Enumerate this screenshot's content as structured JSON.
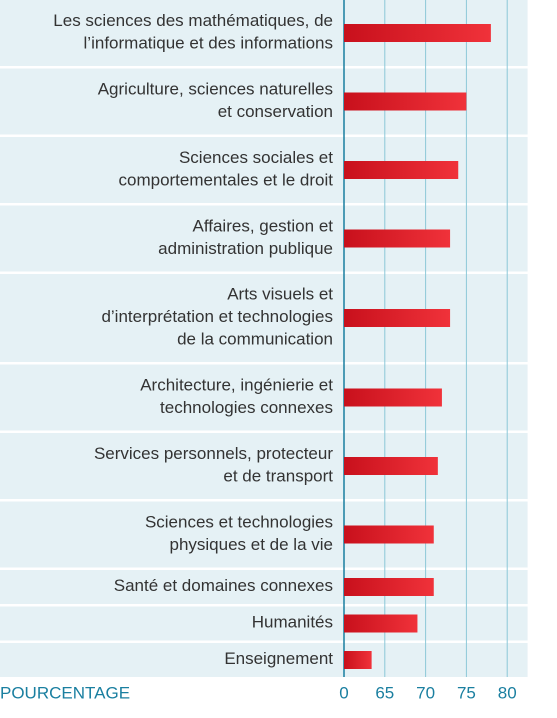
{
  "chart_data": {
    "type": "bar",
    "categories": [
      [
        "Les sciences des mathématiques, de",
        "l’informatique et des informations"
      ],
      [
        "Agriculture, sciences naturelles",
        "et conservation"
      ],
      [
        "Sciences sociales et",
        "comportementales et le droit"
      ],
      [
        "Affaires, gestion et",
        "administration publique"
      ],
      [
        "Arts visuels et",
        "d’interprétation et technologies",
        "de la communication"
      ],
      [
        "Architecture, ingénierie et",
        "technologies connexes"
      ],
      [
        "Services personnels, protecteur",
        "et de transport"
      ],
      [
        "Sciences et technologies",
        "physiques et de la vie"
      ],
      [
        "Santé et domaines connexes"
      ],
      [
        "Humanités"
      ],
      [
        "Enseignement"
      ]
    ],
    "values": [
      78,
      75,
      74,
      73,
      73,
      72,
      71.5,
      71,
      71,
      69,
      44
    ],
    "color": "#e0202a",
    "xlabel": "POURCENTAGE",
    "xticks": [
      0,
      65,
      70,
      75,
      80
    ],
    "xlim": [
      0,
      82.5
    ],
    "grid": true
  }
}
